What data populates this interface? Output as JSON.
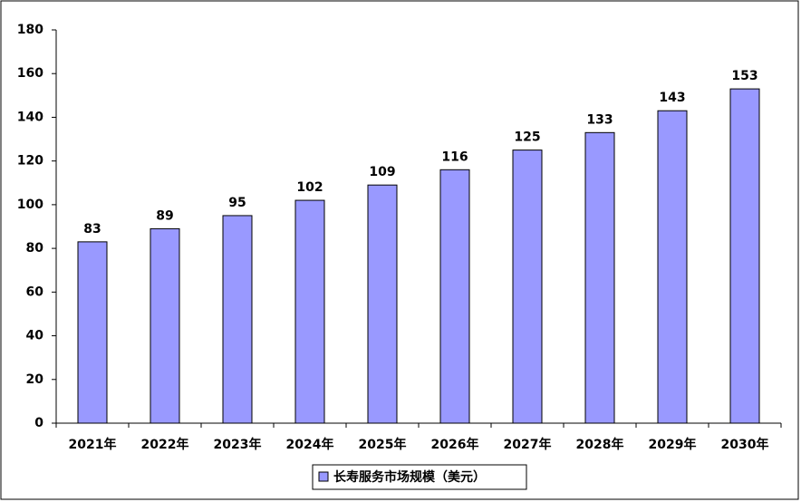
{
  "chart_data": {
    "type": "bar",
    "categories": [
      "2021年",
      "2022年",
      "2023年",
      "2024年",
      "2025年",
      "2026年",
      "2027年",
      "2028年",
      "2029年",
      "2030年"
    ],
    "series": [
      {
        "name": "长寿服务市场规模（美元）",
        "color": "#9999ff",
        "values": [
          83,
          89,
          95,
          102,
          109,
          116,
          125,
          133,
          143,
          153
        ]
      }
    ],
    "ylim": [
      0,
      180
    ],
    "yticks": [
      0,
      20,
      40,
      60,
      80,
      100,
      120,
      140,
      160,
      180
    ],
    "grid": false,
    "legend": "bottom"
  }
}
